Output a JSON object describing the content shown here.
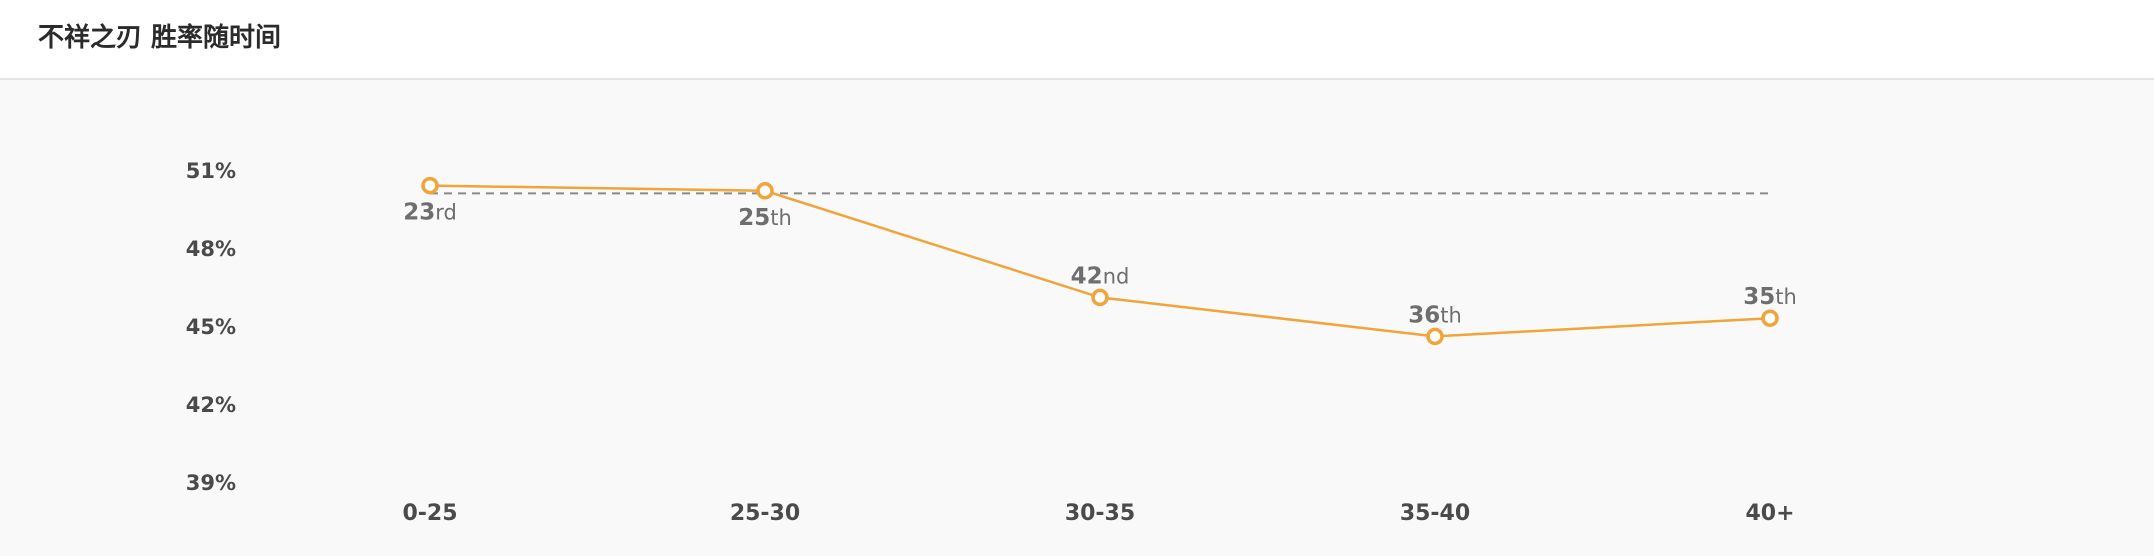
{
  "header": {
    "title": "不祥之刃 胜率随时间"
  },
  "colors": {
    "line": "#f0a43a",
    "reference": "#8a8a8a",
    "axis_text": "#4a4a4a",
    "rank_text": "#6e6e6e"
  },
  "chart_data": {
    "type": "line",
    "title": "不祥之刃 胜率随时间",
    "xlabel": "",
    "ylabel": "",
    "categories": [
      "0-25",
      "25-30",
      "30-35",
      "35-40",
      "40+"
    ],
    "y_ticks": [
      "51%",
      "48%",
      "45%",
      "42%",
      "39%"
    ],
    "y_tick_values": [
      51,
      48,
      45,
      42,
      39
    ],
    "ylim": [
      39,
      51
    ],
    "grid": false,
    "series": [
      {
        "values": [
          50.4,
          50.2,
          46.1,
          44.6,
          45.3
        ],
        "rank_numbers": [
          "23",
          "25",
          "42",
          "36",
          "35"
        ],
        "rank_suffixes": [
          "rd",
          "th",
          "nd",
          "th",
          "th"
        ],
        "label_position": [
          "below",
          "below",
          "above",
          "above",
          "above"
        ]
      }
    ],
    "reference_line": {
      "value": 50.1,
      "style": "dashed"
    }
  }
}
